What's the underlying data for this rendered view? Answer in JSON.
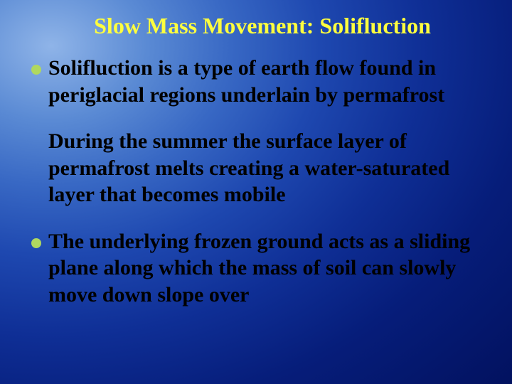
{
  "slide": {
    "title": "Slow Mass Movement: Solifluction",
    "title_fontsize": 32,
    "title_color": "#fefe3e",
    "bullet_color": "#b0d860",
    "body_fontsize": 30,
    "body_color": "#000000",
    "items": [
      {
        "has_bullet": true,
        "text": "Solifluction is a type of earth flow found in periglacial regions underlain by permafrost"
      },
      {
        "has_bullet": false,
        "text": "During the summer the surface layer of permafrost melts creating a water-saturated layer that becomes mobile"
      },
      {
        "has_bullet": true,
        "text": "The underlying frozen ground acts as a sliding plane along which the mass of soil can slowly move down slope over"
      }
    ]
  }
}
